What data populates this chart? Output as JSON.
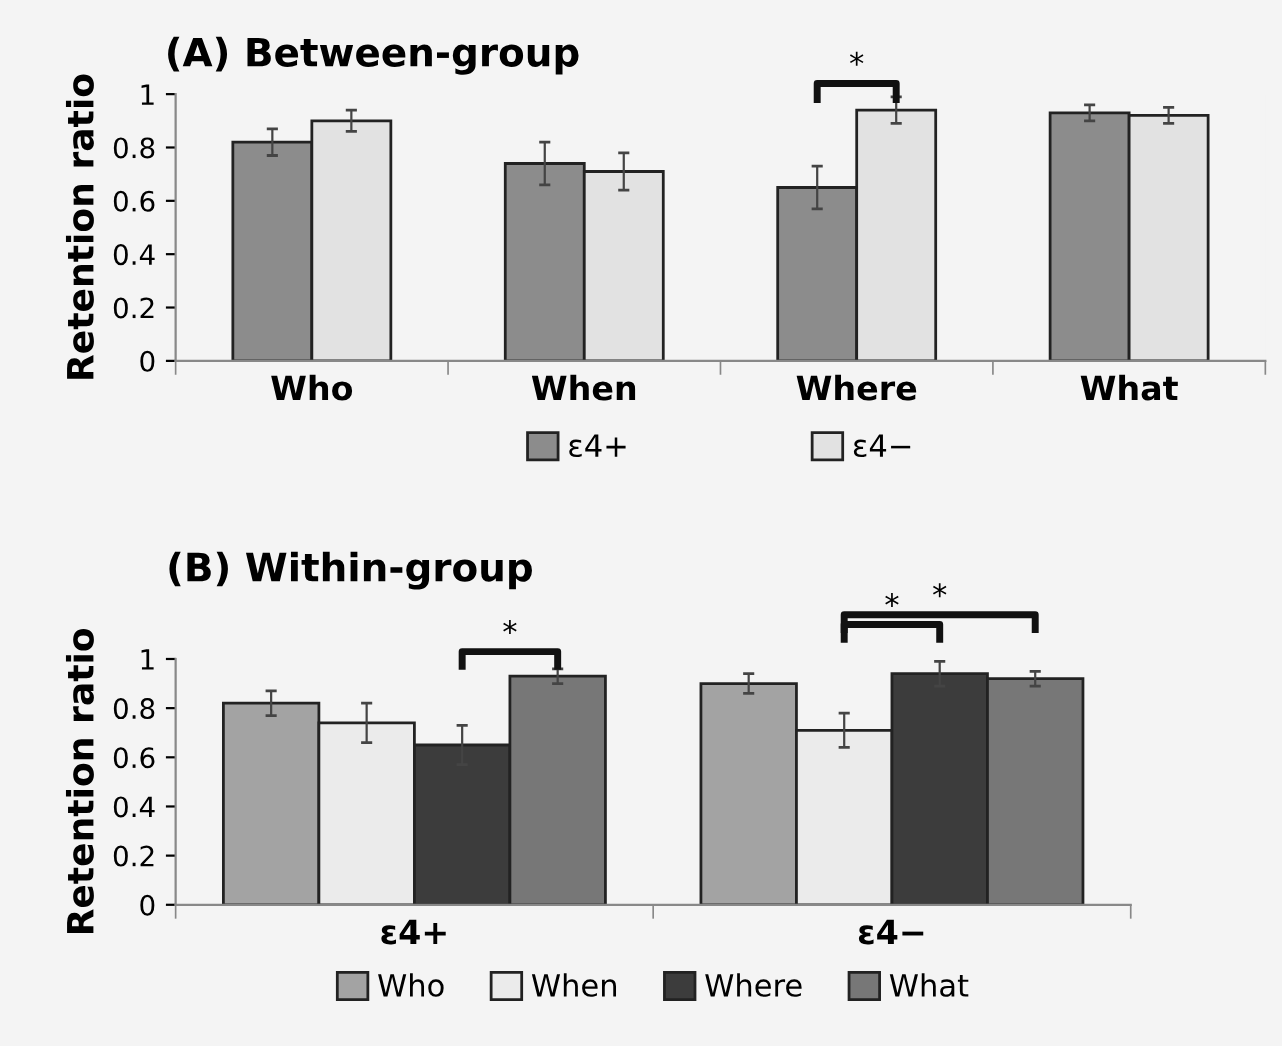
{
  "chart_data": [
    {
      "type": "bar",
      "title": "(A) Between-group",
      "ylabel": "Retention ratio",
      "categories": [
        "Who",
        "When",
        "Where",
        "What"
      ],
      "series": [
        {
          "name": "ε4+",
          "color": "#8c8c8c",
          "values": [
            0.82,
            0.74,
            0.65,
            0.93
          ],
          "errors": [
            0.05,
            0.08,
            0.08,
            0.03
          ]
        },
        {
          "name": "ε4−",
          "color": "#e2e2e2",
          "values": [
            0.9,
            0.71,
            0.94,
            0.92
          ],
          "errors": [
            0.04,
            0.07,
            0.05,
            0.03
          ]
        }
      ],
      "ylim": [
        0,
        1
      ],
      "yticks": [
        0,
        0.2,
        0.4,
        0.6,
        0.8,
        1
      ],
      "grid": false,
      "legend": "bottom",
      "annotations": [
        "*"
      ]
    },
    {
      "type": "bar",
      "title": "(B) Within-group",
      "ylabel": "Retention ratio",
      "categories": [
        "ε4+",
        "ε4−"
      ],
      "series": [
        {
          "name": "Who",
          "color": "#a3a3a3",
          "values": [
            0.82,
            0.9
          ],
          "errors": [
            0.05,
            0.04
          ]
        },
        {
          "name": "When",
          "color": "#ebebeb",
          "values": [
            0.74,
            0.71
          ],
          "errors": [
            0.08,
            0.07
          ]
        },
        {
          "name": "Where",
          "color": "#3c3c3c",
          "values": [
            0.65,
            0.94
          ],
          "errors": [
            0.08,
            0.05
          ]
        },
        {
          "name": "What",
          "color": "#777777",
          "values": [
            0.93,
            0.92
          ],
          "errors": [
            0.03,
            0.03
          ]
        }
      ],
      "ylim": [
        0,
        1
      ],
      "yticks": [
        0,
        0.2,
        0.4,
        0.6,
        0.8,
        1
      ],
      "grid": false,
      "legend": "bottom",
      "annotations": [
        "*",
        "*",
        "*"
      ]
    }
  ]
}
